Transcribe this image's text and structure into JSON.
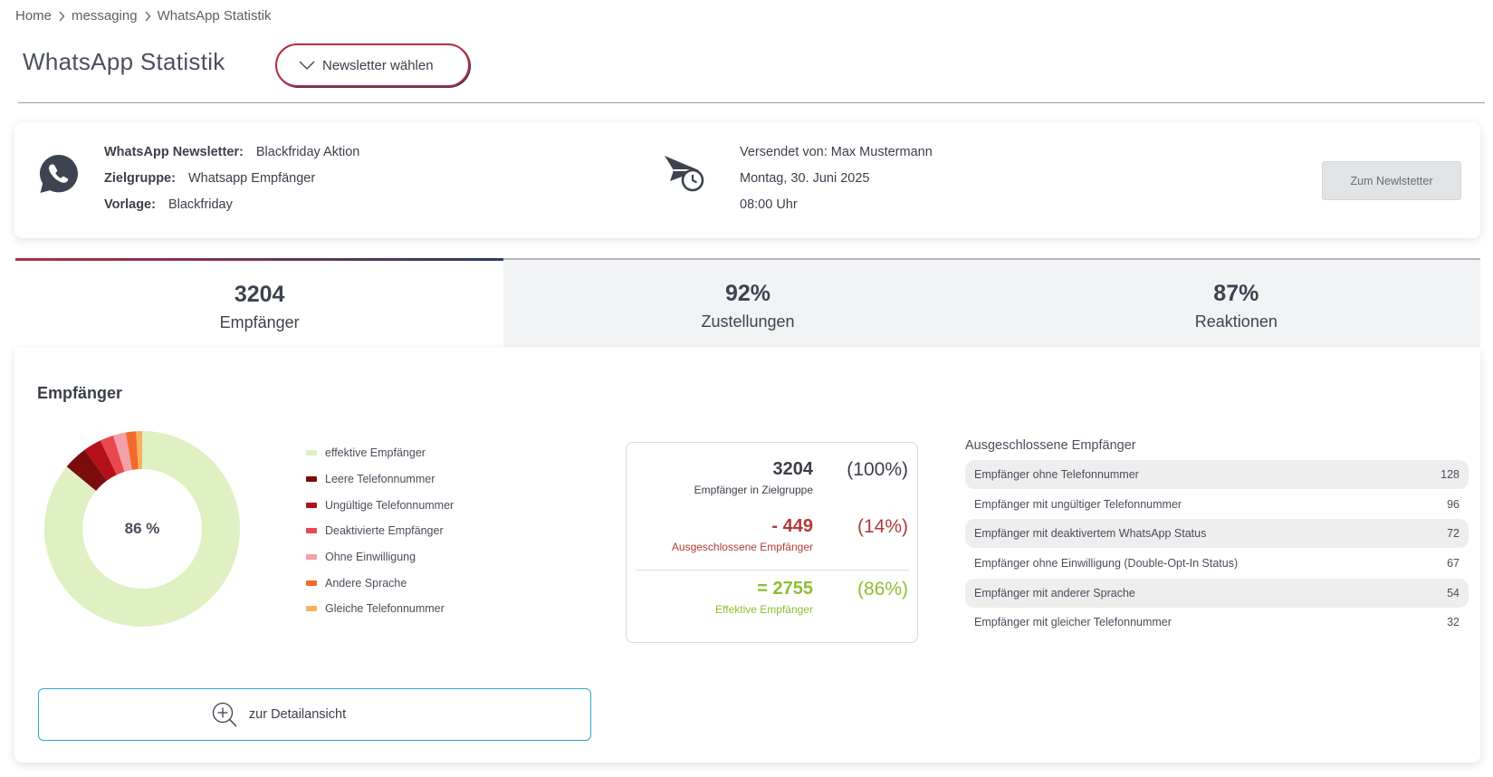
{
  "breadcrumb": {
    "home": "Home",
    "messaging": "messaging",
    "current": "WhatsApp Statistik"
  },
  "header": {
    "title": "WhatsApp Statistik",
    "newsletter_select": "Newsletter wählen"
  },
  "info": {
    "newsletter_label": "WhatsApp Newsletter:",
    "newsletter_value": "Blackfriday Aktion",
    "group_label": "Zielgruppe:",
    "group_value": "Whatsapp Empfänger",
    "template_label": "Vorlage:",
    "template_value": "Blackfriday",
    "sent_by": "Versendet von: Max Mustermann",
    "date": "Montag, 30. Juni 2025",
    "time": "08:00 Uhr",
    "to_newsletter_button": "Zum Newlstetter"
  },
  "tabs": [
    {
      "value": "3204",
      "label": "Empfänger"
    },
    {
      "value": "92%",
      "label": "Zustellungen"
    },
    {
      "value": "87%",
      "label": "Reaktionen"
    }
  ],
  "panel": {
    "title": "Empfänger",
    "donut_center": "86 %",
    "detail_button": "zur Detailansicht"
  },
  "colors": {
    "effective": "#dff0c2",
    "empty_phone": "#7a0c0c",
    "invalid_phone": "#b3101a",
    "deactivated": "#e8494f",
    "no_consent": "#f4a0a8",
    "other_language": "#f26a2a",
    "same_phone": "#f7b060"
  },
  "legend": [
    {
      "label": "effektive Empfänger",
      "color": "#dff0c2"
    },
    {
      "label": "Leere Telefonnummer",
      "color": "#7a0c0c"
    },
    {
      "label": "Ungültige Telefonnummer",
      "color": "#b3101a"
    },
    {
      "label": "Deaktivierte Empfänger",
      "color": "#e8494f"
    },
    {
      "label": "Ohne Einwilligung",
      "color": "#f4a0a8"
    },
    {
      "label": "Andere Sprache",
      "color": "#f26a2a"
    },
    {
      "label": "Gleiche Telefonnummer",
      "color": "#f7b060"
    }
  ],
  "chart_data": {
    "type": "pie",
    "donut": true,
    "center_label": "86 %",
    "categories": [
      "effektive Empfänger",
      "Leere Telefonnummer",
      "Ungültige Telefonnummer",
      "Deaktivierte Empfänger",
      "Ohne Einwilligung",
      "Andere Sprache",
      "Gleiche Telefonnummer"
    ],
    "values": [
      2755,
      128,
      96,
      72,
      67,
      54,
      32
    ],
    "colors": [
      "#dff0c2",
      "#7a0c0c",
      "#b3101a",
      "#e8494f",
      "#f4a0a8",
      "#f26a2a",
      "#f7b060"
    ],
    "legend": "right"
  },
  "calc": {
    "total_value": "3204",
    "total_label": "Empfänger in Zielgruppe",
    "total_pct": "(100%)",
    "excluded_value": "- 449",
    "excluded_label": "Ausgeschlossene Empfänger",
    "excluded_pct": "(14%)",
    "effective_value": "= 2755",
    "effective_label": "Effektive Empfänger",
    "effective_pct": "(86%)"
  },
  "excluded": {
    "title": "Ausgeschlossene Empfänger",
    "rows": [
      {
        "label": "Empfänger ohne Telefonnummer",
        "count": "128"
      },
      {
        "label": "Empfänger mit ungültiger Telefonnummer",
        "count": "96"
      },
      {
        "label": "Empfänger mit deaktivertem WhatsApp Status",
        "count": "72"
      },
      {
        "label": "Empfänger ohne Einwilligung (Double-Opt-In Status)",
        "count": "67"
      },
      {
        "label": "Empfänger mit anderer Sprache",
        "count": "54"
      },
      {
        "label": "Empfänger mit gleicher Telefonnummer",
        "count": "32"
      }
    ]
  }
}
